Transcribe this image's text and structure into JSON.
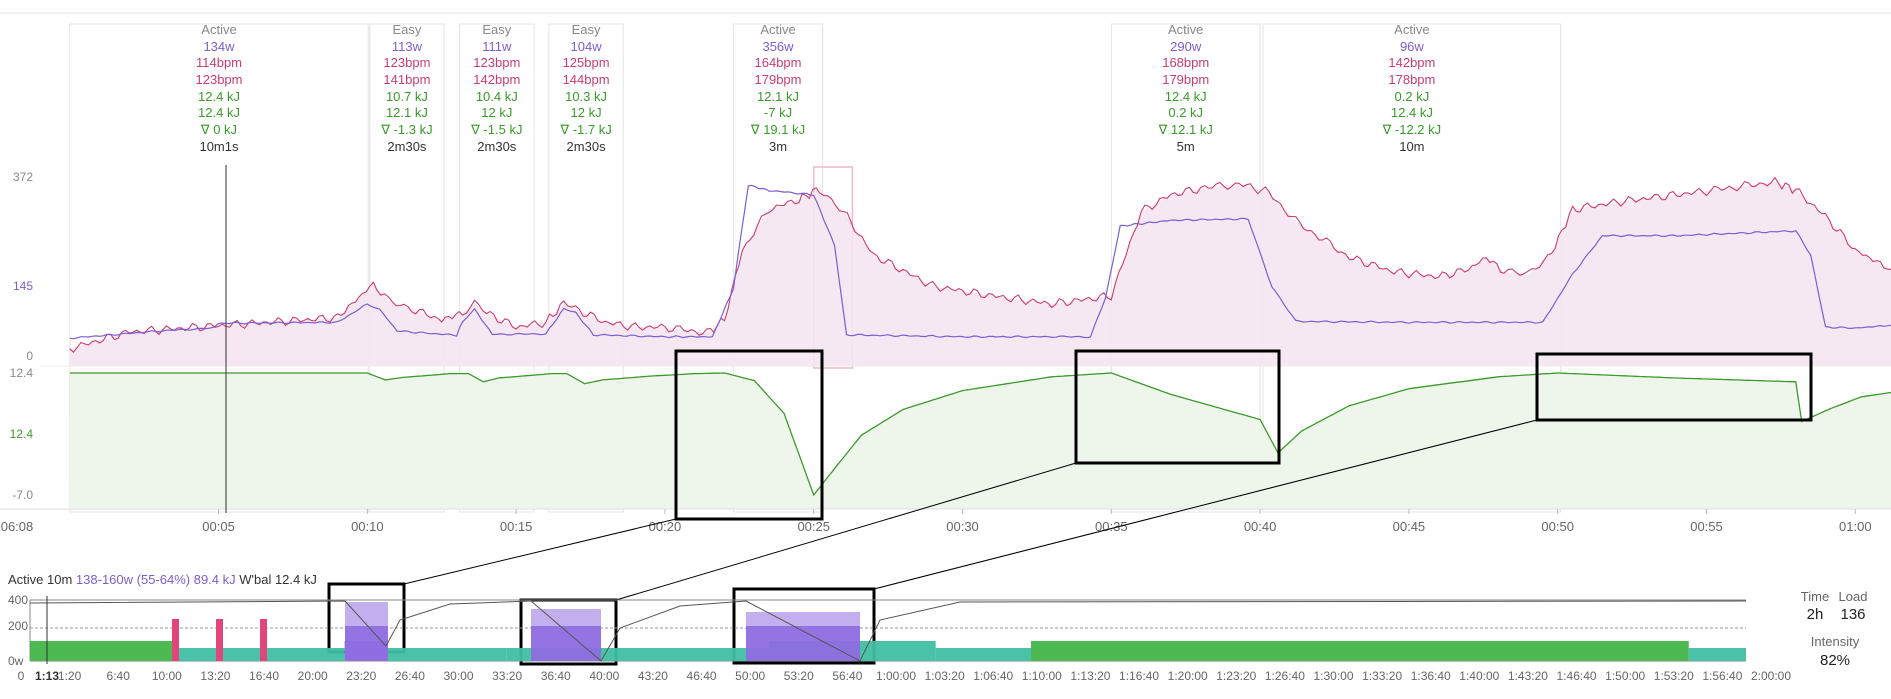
{
  "colors": {
    "power": "#7b5fd0",
    "hr": "#cc3d6b",
    "wbal": "#3a9a2a",
    "label": "#888888",
    "text": "#333333",
    "power_fill": "#f5e6f1",
    "wbal_fill": "#eef6ec",
    "mini_green": "#43b54a",
    "mini_teal": "#3fbfa3",
    "mini_purple": "#8e6ee0",
    "mini_pink": "#e2457a"
  },
  "intervals": [
    {
      "type": "Active",
      "watts": "134w",
      "hr_avg": "114bpm",
      "hr_max": "123bpm",
      "kj1": "12.4 kJ",
      "kj2": "12.4 kJ",
      "delta": "∇ 0 kJ",
      "dur": "10m1s"
    },
    {
      "type": "Easy",
      "watts": "113w",
      "hr_avg": "123bpm",
      "hr_max": "141bpm",
      "kj1": "10.7 kJ",
      "kj2": "12.1 kJ",
      "delta": "∇ -1.3 kJ",
      "dur": "2m30s"
    },
    {
      "type": "Easy",
      "watts": "111w",
      "hr_avg": "123bpm",
      "hr_max": "142bpm",
      "kj1": "10.4 kJ",
      "kj2": "12 kJ",
      "delta": "∇ -1.5 kJ",
      "dur": "2m30s"
    },
    {
      "type": "Easy",
      "watts": "104w",
      "hr_avg": "125bpm",
      "hr_max": "144bpm",
      "kj1": "10.3 kJ",
      "kj2": "12 kJ",
      "delta": "∇ -1.7 kJ",
      "dur": "2m30s"
    },
    {
      "type": "Active",
      "watts": "356w",
      "hr_avg": "164bpm",
      "hr_max": "179bpm",
      "kj1": "12.1 kJ",
      "kj2": "-7 kJ",
      "delta": "∇ 19.1 kJ",
      "dur": "3m"
    },
    {
      "type": "Active",
      "watts": "290w",
      "hr_avg": "168bpm",
      "hr_max": "179bpm",
      "kj1": "12.4 kJ",
      "kj2": "0.2 kJ",
      "delta": "∇ 12.1 kJ",
      "dur": "5m"
    },
    {
      "type": "Active",
      "watts": "96w",
      "hr_avg": "142bpm",
      "hr_max": "178bpm",
      "kj1": "0.2 kJ",
      "kj2": "12.4 kJ",
      "delta": "∇ -12.2 kJ",
      "dur": "10m"
    }
  ],
  "chart_data": {
    "type": "line",
    "y_ticks_top": [
      "372",
      "145",
      "0"
    ],
    "y_ticks_bottom": [
      "12.4",
      "12.4",
      "-7.0"
    ],
    "x_ticks": [
      "06:08",
      "00:05",
      "00:10",
      "00:15",
      "00:20",
      "00:25",
      "00:30",
      "00:35",
      "00:40",
      "00:45",
      "00:50",
      "00:55",
      "01:00"
    ],
    "x_minutes": [
      0,
      5,
      10,
      15,
      20,
      25,
      30,
      35,
      40,
      45,
      50,
      55,
      60
    ],
    "xlim": [
      -1,
      61.2
    ],
    "ylim_power": [
      0,
      372
    ],
    "ylim_wbal": [
      -7,
      12.4
    ],
    "series": [
      {
        "name": "power",
        "points": [
          [
            0,
            37
          ],
          [
            3,
            52
          ],
          [
            4.8,
            58
          ],
          [
            5,
            68
          ],
          [
            9,
            70
          ],
          [
            10,
            108
          ],
          [
            10.4,
            98
          ],
          [
            11,
            52
          ],
          [
            13,
            43
          ],
          [
            13.2,
            72
          ],
          [
            13.6,
            97
          ],
          [
            14.2,
            45
          ],
          [
            16,
            46
          ],
          [
            16.6,
            98
          ],
          [
            17,
            90
          ],
          [
            17.6,
            44
          ],
          [
            20,
            40
          ],
          [
            21.6,
            40
          ],
          [
            22.3,
            140
          ],
          [
            22.8,
            355
          ],
          [
            23.5,
            344
          ],
          [
            25,
            335
          ],
          [
            25.7,
            230
          ],
          [
            26.1,
            44
          ],
          [
            30,
            40
          ],
          [
            33,
            40
          ],
          [
            34.3,
            40
          ],
          [
            34.8,
            120
          ],
          [
            35.3,
            270
          ],
          [
            37,
            282
          ],
          [
            39.6,
            285
          ],
          [
            40.4,
            144
          ],
          [
            41.2,
            72
          ],
          [
            45,
            70
          ],
          [
            49.5,
            70
          ],
          [
            50.5,
            170
          ],
          [
            51.5,
            250
          ],
          [
            54,
            250
          ],
          [
            58,
            260
          ],
          [
            58.5,
            210
          ],
          [
            59,
            60
          ],
          [
            60,
            58
          ],
          [
            61.2,
            64
          ]
        ]
      },
      {
        "name": "hr",
        "points": [
          [
            0,
            15
          ],
          [
            2,
            50
          ],
          [
            5,
            63
          ],
          [
            9,
            80
          ],
          [
            10.2,
            150
          ],
          [
            10.7,
            115
          ],
          [
            11.5,
            98
          ],
          [
            12.5,
            75
          ],
          [
            13.2,
            90
          ],
          [
            13.6,
            110
          ],
          [
            14,
            90
          ],
          [
            15,
            60
          ],
          [
            16,
            70
          ],
          [
            16.6,
            110
          ],
          [
            17,
            98
          ],
          [
            18,
            70
          ],
          [
            19,
            60
          ],
          [
            20,
            60
          ],
          [
            21.4,
            48
          ],
          [
            22,
            75
          ],
          [
            22.6,
            220
          ],
          [
            23.5,
            305
          ],
          [
            24.5,
            325
          ],
          [
            25.2,
            348
          ],
          [
            26,
            300
          ],
          [
            27,
            210
          ],
          [
            29,
            145
          ],
          [
            31,
            125
          ],
          [
            33,
            108
          ],
          [
            35,
            125
          ],
          [
            36,
            300
          ],
          [
            37,
            335
          ],
          [
            38,
            348
          ],
          [
            39.3,
            358
          ],
          [
            40.3,
            340
          ],
          [
            41.2,
            280
          ],
          [
            43,
            205
          ],
          [
            44.5,
            175
          ],
          [
            46,
            165
          ],
          [
            47,
            180
          ],
          [
            47.6,
            205
          ],
          [
            48.2,
            175
          ],
          [
            49,
            168
          ],
          [
            49.8,
            215
          ],
          [
            50.5,
            305
          ],
          [
            52,
            320
          ],
          [
            55,
            343
          ],
          [
            57.3,
            362
          ],
          [
            58,
            345
          ],
          [
            59,
            290
          ],
          [
            60,
            220
          ],
          [
            61.2,
            180
          ]
        ]
      },
      {
        "name": "wbal",
        "points": [
          [
            0,
            12.4
          ],
          [
            10,
            12.4
          ],
          [
            10.6,
            11.3
          ],
          [
            11.2,
            11.7
          ],
          [
            12.8,
            12.3
          ],
          [
            13.4,
            12.3
          ],
          [
            13.9,
            11.0
          ],
          [
            14.4,
            11.6
          ],
          [
            16.2,
            12.3
          ],
          [
            16.7,
            12.3
          ],
          [
            17.3,
            10.7
          ],
          [
            17.9,
            11.3
          ],
          [
            19.5,
            11.9
          ],
          [
            21,
            12.3
          ],
          [
            22,
            12.4
          ],
          [
            23,
            11.2
          ],
          [
            24,
            6.0
          ],
          [
            25,
            -7.0
          ],
          [
            25.8,
            -2.2
          ],
          [
            26.6,
            2.5
          ],
          [
            28,
            6.6
          ],
          [
            30,
            9.6
          ],
          [
            33,
            11.8
          ],
          [
            35,
            12.4
          ],
          [
            37,
            9.0
          ],
          [
            40,
            5.0
          ],
          [
            40.6,
            -0.3
          ],
          [
            41.4,
            3.2
          ],
          [
            43,
            7.2
          ],
          [
            45,
            9.9
          ],
          [
            48,
            11.8
          ],
          [
            50,
            12.4
          ],
          [
            54,
            11.6
          ],
          [
            58,
            11.0
          ],
          [
            58.2,
            4.7
          ],
          [
            59.2,
            6.8
          ],
          [
            60.2,
            8.6
          ],
          [
            61.2,
            9.3
          ]
        ]
      }
    ],
    "interval_minutes": [
      [
        0,
        10.03
      ],
      [
        10.08,
        12.58
      ],
      [
        13.1,
        15.6
      ],
      [
        16.1,
        18.6
      ],
      [
        22.3,
        25.3
      ],
      [
        35,
        40
      ],
      [
        40.1,
        50.1
      ]
    ]
  },
  "mini": {
    "summary_prefix": "Active 10m ",
    "summary_power": "138-160w (55-64%) 89.4 kJ",
    "summary_wbal": " W'bal 12.4 kJ",
    "y_ticks": [
      "400",
      "200",
      "0w"
    ],
    "cursor_label": "1:13",
    "x_ticks": [
      "0",
      "1:20",
      "6:40",
      "10:00",
      "13:20",
      "16:40",
      "20:00",
      "23:20",
      "26:40",
      "30:00",
      "33:20",
      "36:40",
      "40:00",
      "43:20",
      "46:40",
      "50:00",
      "53:20",
      "56:40",
      "1:00:00",
      "1:03:20",
      "1:06:40",
      "1:10:00",
      "1:13:20",
      "1:16:40",
      "1:20:00",
      "1:23:20",
      "1:26:40",
      "1:30:00",
      "1:33:20",
      "1:36:40",
      "1:40:00",
      "1:43:20",
      "1:46:40",
      "1:50:00",
      "1:53:20",
      "1:56:40",
      "2:00:00"
    ]
  },
  "stats": {
    "time_label": "Time",
    "time_value": "2h",
    "load_label": "Load",
    "load_value": "136",
    "intensity_label": "Intensity",
    "intensity_value": "82%"
  }
}
